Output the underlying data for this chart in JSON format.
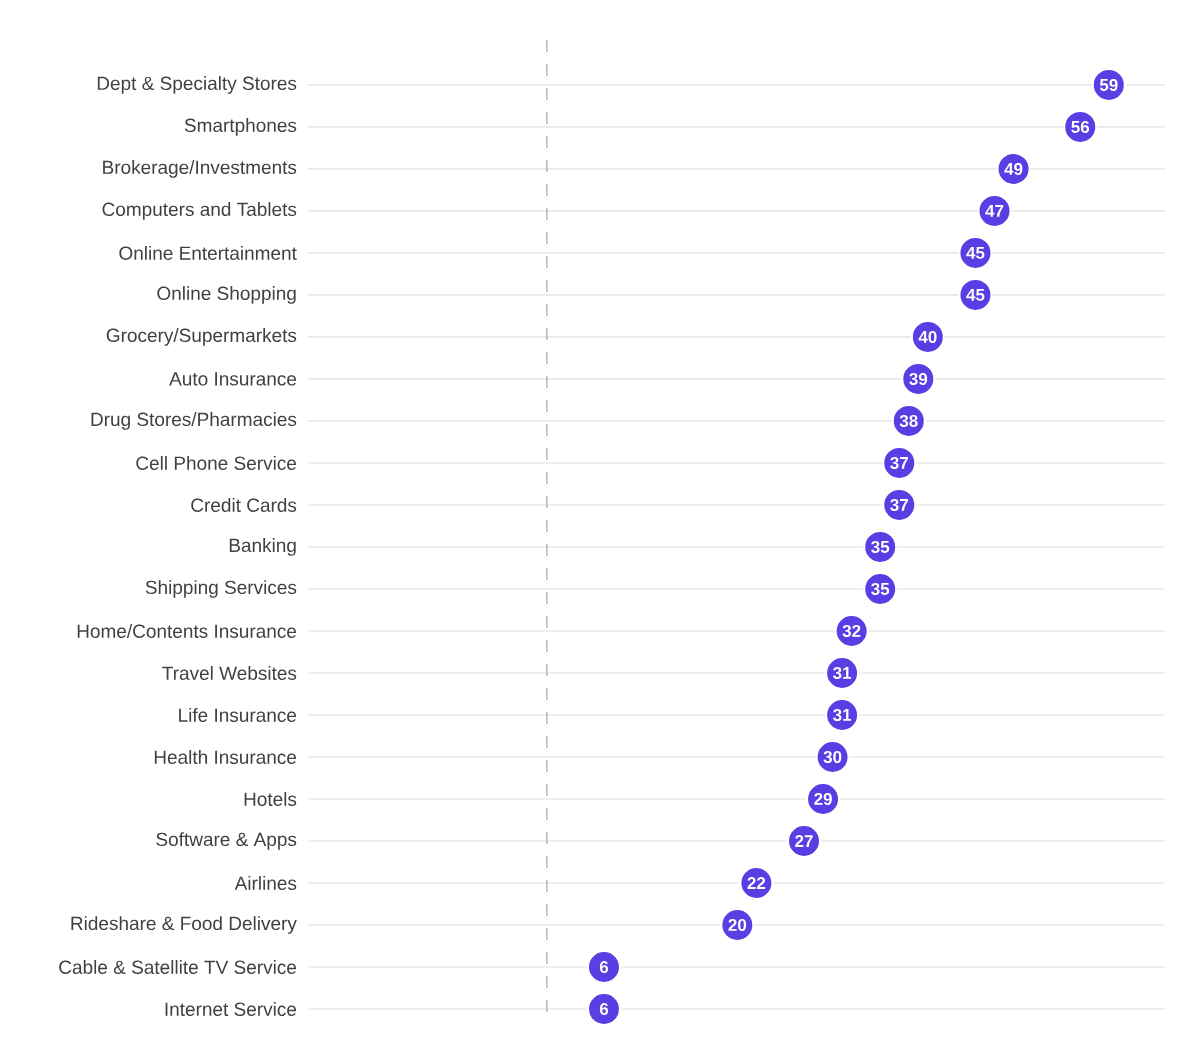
{
  "chart_data": {
    "type": "scatter",
    "orientation": "horizontal",
    "categories": [
      "Dept & Specialty Stores",
      "Smartphones",
      "Brokerage/Investments",
      "Computers and Tablets",
      "Online Entertainment",
      "Online Shopping",
      "Grocery/Supermarkets",
      "Auto Insurance",
      "Drug Stores/Pharmacies",
      "Cell Phone Service",
      "Credit Cards",
      "Banking",
      "Shipping Services",
      "Home/Contents Insurance",
      "Travel Websites",
      "Life Insurance",
      "Health Insurance",
      "Hotels",
      "Software & Apps",
      "Airlines",
      "Rideshare & Food Delivery",
      "Cable & Satellite TV Service",
      "Internet Service"
    ],
    "values": [
      59,
      56,
      49,
      47,
      45,
      45,
      40,
      39,
      38,
      37,
      37,
      35,
      35,
      32,
      31,
      31,
      30,
      29,
      27,
      22,
      20,
      6,
      6
    ],
    "color": "#5b3ee3",
    "marker": "circle",
    "data_labels": true,
    "grid": "y",
    "tick_labels": "y"
  }
}
